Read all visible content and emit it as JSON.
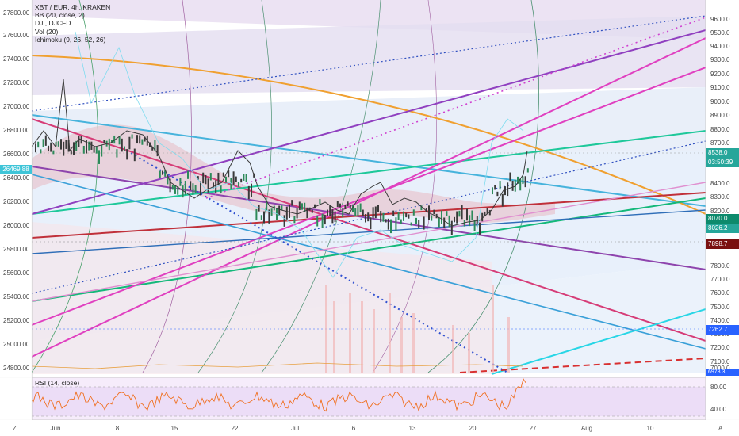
{
  "legend": {
    "symbol": "XBT / EUR, 4h, KRAKEN",
    "bb": "BB (20, close, 2)",
    "dji": "DJI, DJCFD",
    "vol": "Vol (20)",
    "ichimoku": "Ichimoku (9, 26, 52, 26)"
  },
  "rsi": {
    "label": "RSI (14, close)",
    "ticks": [
      "80.00",
      "40.00"
    ]
  },
  "left_axis": {
    "ticks": [
      "27800.00",
      "27600.00",
      "27400.00",
      "27200.00",
      "27000.00",
      "26800.00",
      "26600.00",
      "26400.00",
      "26200.00",
      "26000.00",
      "25800.00",
      "25600.00",
      "25400.00",
      "25200.00",
      "25000.00",
      "24800.00"
    ],
    "dji_price": "26469.88"
  },
  "right_axis": {
    "ticks": [
      "9600.0",
      "9500.0",
      "9400.0",
      "9300.0",
      "9200.0",
      "9100.0",
      "9000.0",
      "8900.0",
      "8800.0",
      "8700.0",
      "8600.0",
      "8400.0",
      "8300.0",
      "8200.0",
      "8100.0",
      "7800.0",
      "7700.0",
      "7600.0",
      "7500.0",
      "7400.0",
      "7300.0",
      "7200.0",
      "7100.0",
      "7000.0"
    ],
    "labels": {
      "last_price": "8538.0",
      "countdown": "03:50:39",
      "ichimoku_a": "8070.0",
      "ichimoku_b": "8026.2",
      "level_red": "7898.7",
      "level_blue": "7262.7",
      "bottom": "6978.3"
    },
    "colors": {
      "last_price": "#26a69a",
      "countdown": "#26a69a",
      "ichimoku_a": "#0d8a6c",
      "ichimoku_b": "#26a69a",
      "level_red": "#7a1010",
      "level_blue": "#2962ff"
    }
  },
  "x_axis": {
    "labels": [
      "Jun",
      "8",
      "15",
      "22",
      "Jul",
      "6",
      "13",
      "20",
      "27",
      "Aug",
      "10"
    ]
  },
  "corner_left": "Z",
  "corner_right": "A"
}
